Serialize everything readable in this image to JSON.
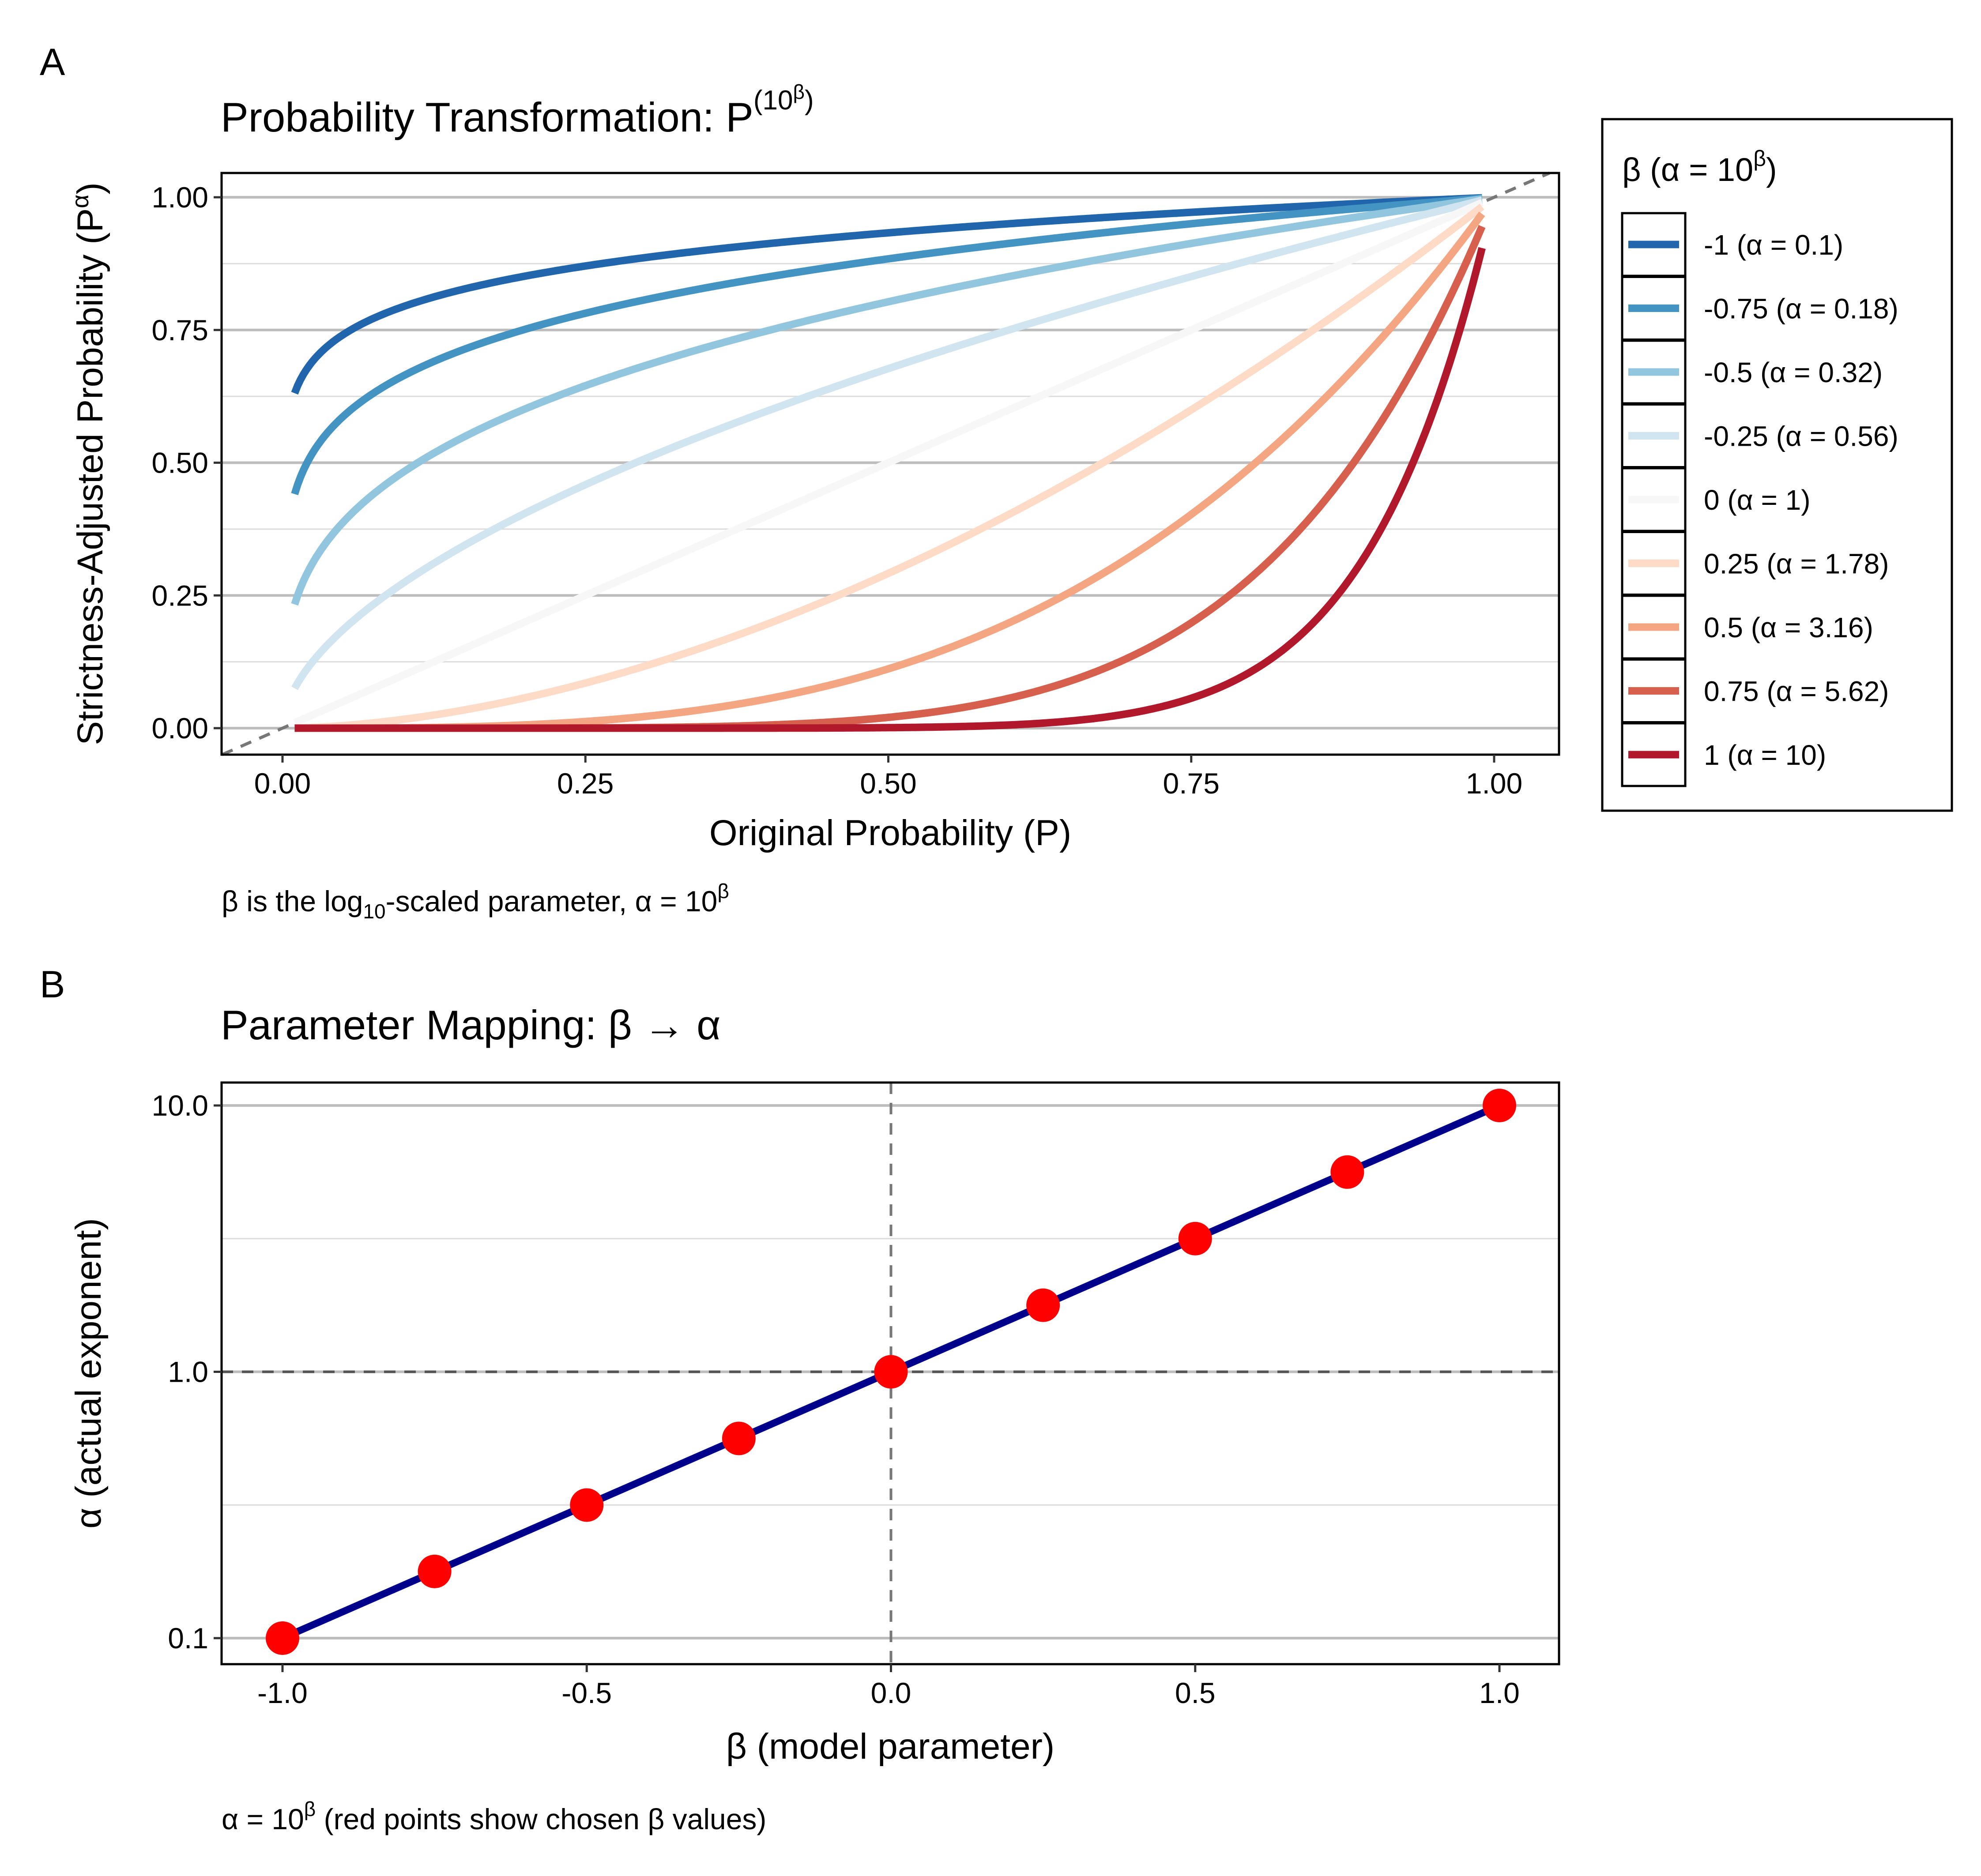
{
  "panels": {
    "a": {
      "tag": "A",
      "title": "Probability Transformation: P",
      "title_exponent": "(10",
      "title_exponent_beta": "β",
      "title_exponent_close": ")",
      "caption_parts": [
        "β is the log",
        "10",
        "-scaled parameter, α = 10",
        "β"
      ]
    },
    "b": {
      "tag": "B",
      "title": "Parameter Mapping: β → α",
      "caption_parts": [
        "α = 10",
        "β",
        " (red points show chosen β values)"
      ]
    }
  },
  "legend": {
    "title": "β (α = 10",
    "title_sup": "β",
    "title_close": ")",
    "items": [
      {
        "label": "-1 (α = 0.1)",
        "color": "#2166ac"
      },
      {
        "label": "-0.75 (α = 0.18)",
        "color": "#4393c3"
      },
      {
        "label": "-0.5 (α = 0.32)",
        "color": "#92c5de"
      },
      {
        "label": "-0.25 (α = 0.56)",
        "color": "#d1e5f0"
      },
      {
        "label": "0 (α = 1)",
        "color": "#f7f7f7"
      },
      {
        "label": "0.25 (α = 1.78)",
        "color": "#fddbc7"
      },
      {
        "label": "0.5 (α = 3.16)",
        "color": "#f4a582"
      },
      {
        "label": "0.75 (α = 5.62)",
        "color": "#d6604d"
      },
      {
        "label": "1 (α = 10)",
        "color": "#b2182b"
      }
    ]
  },
  "chart_data": [
    {
      "type": "line",
      "function": "y = P^(10^β)",
      "xlabel": "Original Probability (P)",
      "ylabel": "Strictness-Adjusted Probability (P",
      "ylabel_sup": "α",
      "ylabel_close": ")",
      "xlim": [
        0,
        1
      ],
      "ylim": [
        0,
        1
      ],
      "x_range": [
        0.01,
        0.99
      ],
      "xticks": [
        0,
        0.25,
        0.5,
        0.75,
        1
      ],
      "xtick_labels": [
        "0.00",
        "0.25",
        "0.50",
        "0.75",
        "1.00"
      ],
      "yticks": [
        0,
        0.25,
        0.5,
        0.75,
        1
      ],
      "ytick_labels": [
        "0.00",
        "0.25",
        "0.50",
        "0.75",
        "1.00"
      ],
      "reference_line": "identity (dashed)",
      "grid": true,
      "series": [
        {
          "name": "-1 (α = 0.1)",
          "beta": -1,
          "alpha": 0.1
        },
        {
          "name": "-0.75 (α = 0.18)",
          "beta": -0.75,
          "alpha": 0.18
        },
        {
          "name": "-0.5 (α = 0.32)",
          "beta": -0.5,
          "alpha": 0.32
        },
        {
          "name": "-0.25 (α = 0.56)",
          "beta": -0.25,
          "alpha": 0.56
        },
        {
          "name": "0 (α = 1)",
          "beta": 0,
          "alpha": 1
        },
        {
          "name": "0.25 (α = 1.78)",
          "beta": 0.25,
          "alpha": 1.78
        },
        {
          "name": "0.5 (α = 3.16)",
          "beta": 0.5,
          "alpha": 3.16
        },
        {
          "name": "0.75 (α = 5.62)",
          "beta": 0.75,
          "alpha": 5.62
        },
        {
          "name": "1 (α = 10)",
          "beta": 1,
          "alpha": 10
        }
      ],
      "legend_position": "right"
    },
    {
      "type": "line",
      "function": "α = 10^β",
      "xlabel": "β (model parameter)",
      "ylabel": "α (actual exponent)",
      "xlim": [
        -1,
        1
      ],
      "ylim": [
        0.1,
        10
      ],
      "yscale": "log",
      "xticks": [
        -1,
        -0.5,
        0,
        0.5,
        1
      ],
      "xtick_labels": [
        "-1.0",
        "-0.5",
        "0.0",
        "0.5",
        "1.0"
      ],
      "yticks": [
        0.1,
        1,
        10
      ],
      "ytick_labels": [
        "0.1",
        "1.0",
        "10.0"
      ],
      "reference_lines": {
        "x": 0,
        "y": 1
      },
      "line_color": "#00008b",
      "point_color": "#ff0000",
      "points": {
        "x": [
          -1,
          -0.75,
          -0.5,
          -0.25,
          0,
          0.25,
          0.5,
          0.75,
          1
        ],
        "y": [
          0.1,
          0.178,
          0.316,
          0.562,
          1,
          1.778,
          3.162,
          5.623,
          10
        ]
      },
      "grid": true
    }
  ]
}
